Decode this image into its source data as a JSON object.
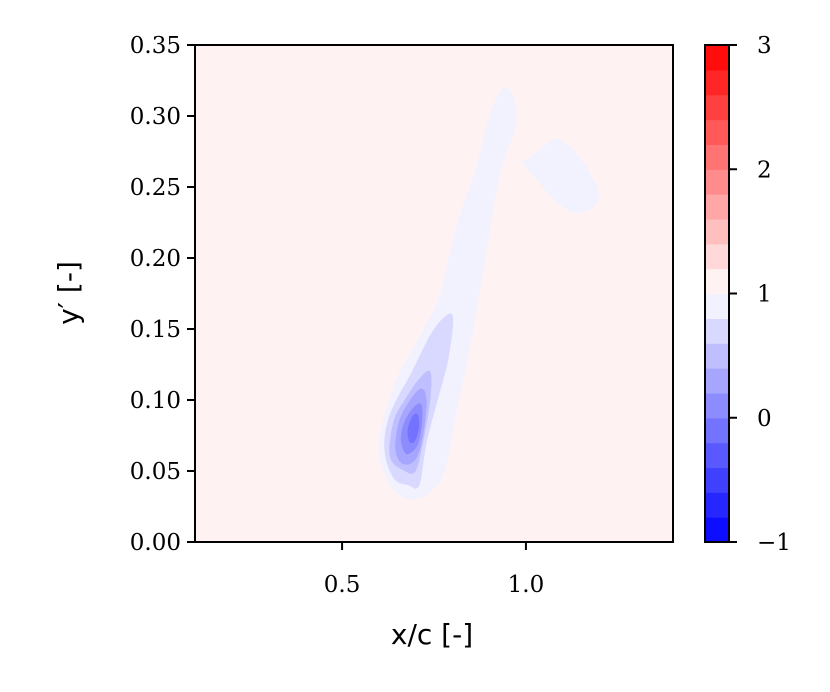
{
  "chart_data": {
    "type": "contour",
    "xlabel": "x/c [-]",
    "ylabel": "y′ [-]",
    "xlim": [
      0.1,
      1.4
    ],
    "ylim": [
      0.0,
      0.35
    ],
    "x_ticks": [
      {
        "value": 0.5,
        "label": "0.5"
      },
      {
        "value": 1.0,
        "label": "1.0"
      }
    ],
    "y_ticks": [
      {
        "value": 0.0,
        "label": "0.00"
      },
      {
        "value": 0.05,
        "label": "0.05"
      },
      {
        "value": 0.1,
        "label": "0.10"
      },
      {
        "value": 0.15,
        "label": "0.15"
      },
      {
        "value": 0.2,
        "label": "0.20"
      },
      {
        "value": 0.25,
        "label": "0.25"
      },
      {
        "value": 0.3,
        "label": "0.30"
      },
      {
        "value": 0.35,
        "label": "0.35"
      }
    ],
    "colorbar": {
      "colormap": "bwr",
      "range": [
        -1,
        3
      ],
      "levels": [
        -1.0,
        -0.8,
        -0.6,
        -0.4,
        -0.2,
        0.0,
        0.2,
        0.4,
        0.6,
        0.8,
        1.0,
        1.2,
        1.4,
        1.6,
        1.8,
        2.0,
        2.2,
        2.4,
        2.6,
        2.8,
        3.0
      ],
      "ticks": [
        {
          "value": -1,
          "label": "−1"
        },
        {
          "value": 0,
          "label": "0"
        },
        {
          "value": 1,
          "label": "1"
        },
        {
          "value": 2,
          "label": "2"
        },
        {
          "value": 3,
          "label": "3"
        }
      ]
    },
    "grid": false,
    "background_level_range": [
      1.0,
      1.2
    ],
    "regions": [
      {
        "level_range": [
          0.8,
          1.0
        ],
        "points": [
          [
            0.66,
            0.032
          ],
          [
            0.62,
            0.045
          ],
          [
            0.6,
            0.07
          ],
          [
            0.64,
            0.11
          ],
          [
            0.7,
            0.14
          ],
          [
            0.76,
            0.17
          ],
          [
            0.79,
            0.2
          ],
          [
            0.82,
            0.23
          ],
          [
            0.86,
            0.26
          ],
          [
            0.9,
            0.3
          ],
          [
            0.94,
            0.32
          ],
          [
            0.97,
            0.31
          ],
          [
            0.97,
            0.29
          ],
          [
            0.93,
            0.26
          ],
          [
            0.89,
            0.2
          ],
          [
            0.85,
            0.14
          ],
          [
            0.81,
            0.09
          ],
          [
            0.78,
            0.05
          ],
          [
            0.74,
            0.035
          ],
          [
            0.7,
            0.03
          ]
        ]
      },
      {
        "level_range": [
          0.8,
          1.0
        ],
        "points": [
          [
            0.99,
            0.268
          ],
          [
            1.03,
            0.275
          ],
          [
            1.08,
            0.284
          ],
          [
            1.13,
            0.276
          ],
          [
            1.17,
            0.262
          ],
          [
            1.2,
            0.245
          ],
          [
            1.18,
            0.235
          ],
          [
            1.13,
            0.232
          ],
          [
            1.08,
            0.24
          ],
          [
            1.03,
            0.255
          ],
          [
            1.0,
            0.264
          ],
          [
            0.98,
            0.272
          ]
        ]
      },
      {
        "level_range": [
          0.6,
          0.8
        ],
        "points": [
          [
            0.68,
            0.04
          ],
          [
            0.64,
            0.045
          ],
          [
            0.615,
            0.065
          ],
          [
            0.63,
            0.09
          ],
          [
            0.69,
            0.12
          ],
          [
            0.75,
            0.15
          ],
          [
            0.8,
            0.16
          ],
          [
            0.79,
            0.13
          ],
          [
            0.76,
            0.1
          ],
          [
            0.73,
            0.07
          ],
          [
            0.71,
            0.04
          ]
        ]
      },
      {
        "level_range": [
          0.4,
          0.6
        ],
        "points": [
          [
            0.67,
            0.05
          ],
          [
            0.63,
            0.06
          ],
          [
            0.64,
            0.085
          ],
          [
            0.67,
            0.1
          ],
          [
            0.71,
            0.115
          ],
          [
            0.74,
            0.12
          ],
          [
            0.74,
            0.1
          ],
          [
            0.72,
            0.07
          ],
          [
            0.7,
            0.05
          ]
        ]
      },
      {
        "level_range": [
          0.2,
          0.4
        ],
        "points": [
          [
            0.665,
            0.055
          ],
          [
            0.645,
            0.065
          ],
          [
            0.655,
            0.085
          ],
          [
            0.685,
            0.1
          ],
          [
            0.715,
            0.108
          ],
          [
            0.73,
            0.1
          ],
          [
            0.72,
            0.075
          ],
          [
            0.7,
            0.058
          ]
        ]
      },
      {
        "level_range": [
          0.0,
          0.2
        ],
        "points": [
          [
            0.675,
            0.062
          ],
          [
            0.66,
            0.072
          ],
          [
            0.67,
            0.085
          ],
          [
            0.695,
            0.095
          ],
          [
            0.715,
            0.097
          ],
          [
            0.718,
            0.085
          ],
          [
            0.705,
            0.068
          ]
        ]
      },
      {
        "level_range": [
          -0.2,
          0.0
        ],
        "points": [
          [
            0.685,
            0.07
          ],
          [
            0.678,
            0.078
          ],
          [
            0.69,
            0.088
          ],
          [
            0.705,
            0.09
          ],
          [
            0.71,
            0.082
          ],
          [
            0.7,
            0.072
          ]
        ]
      }
    ]
  }
}
